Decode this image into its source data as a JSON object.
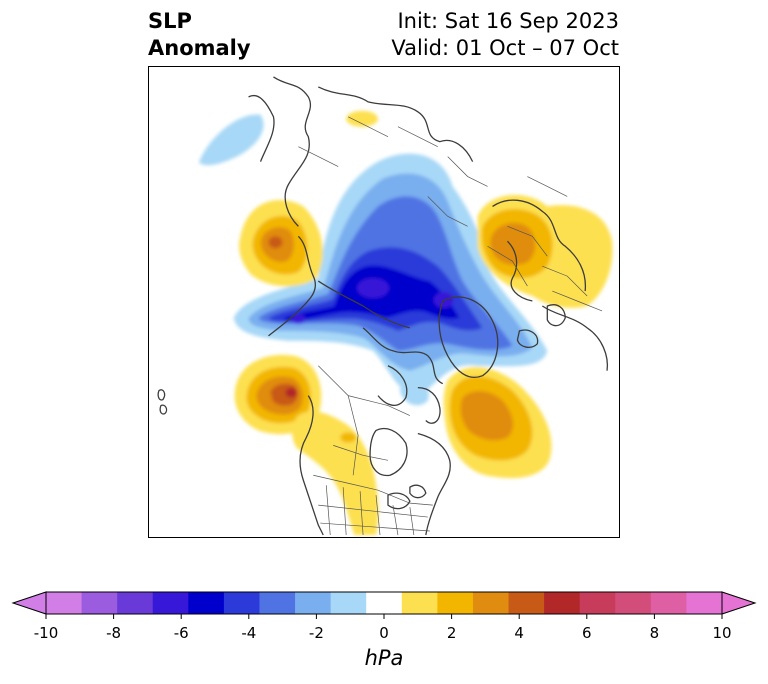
{
  "header": {
    "variable_line1": "SLP",
    "variable_line2": "Anomaly",
    "init": "Init: Sat 16 Sep 2023",
    "valid": "Valid: 01 Oct – 07 Oct"
  },
  "map": {
    "projection": "north-polar-stereographic",
    "region": "Northern Hemisphere (North America, Arctic, Europe)",
    "features": [
      "coastlines",
      "country-borders",
      "us-state-borders",
      "canada-province-borders"
    ],
    "anomaly_features": [
      {
        "label": "strong negative SLP over Arctic / Beaufort Sea region",
        "value_hpa": -7
      },
      {
        "label": "negative SLP extending toward Kara Sea / Siberian Arctic",
        "value_hpa": -6
      },
      {
        "label": "positive SLP over Gulf of Alaska / NE Pacific",
        "value_hpa": 6
      },
      {
        "label": "positive SLP over NW Pacific / Kamchatka",
        "value_hpa": 4
      },
      {
        "label": "positive SLP over western North Atlantic off Newfoundland",
        "value_hpa": 4
      },
      {
        "label": "positive SLP over western Russia / Eastern Europe",
        "value_hpa": 3
      },
      {
        "label": "weak positive SLP over western-central United States",
        "value_hpa": 1.5
      }
    ]
  },
  "colorbar": {
    "label": "hPa",
    "ticks": [
      "-10",
      "-8",
      "-6",
      "-4",
      "-2",
      "0",
      "2",
      "4",
      "6",
      "8",
      "10"
    ],
    "levels": [
      -10,
      -9,
      -8,
      -7,
      -6,
      -5,
      -4,
      -3,
      -2,
      -1,
      1,
      2,
      3,
      4,
      5,
      6,
      7,
      8,
      9,
      10
    ],
    "colors": [
      "#d17ee6",
      "#9c5ce0",
      "#6a3ad8",
      "#3717d8",
      "#0000cc",
      "#2b3ad9",
      "#4f73e3",
      "#79aeef",
      "#a8d8f7",
      "#ffffff",
      "#fde050",
      "#f2b600",
      "#e08c10",
      "#c85a18",
      "#b22828",
      "#c73c5a",
      "#d24d7a",
      "#de5fa4",
      "#e573d4"
    ],
    "extend": "both"
  }
}
